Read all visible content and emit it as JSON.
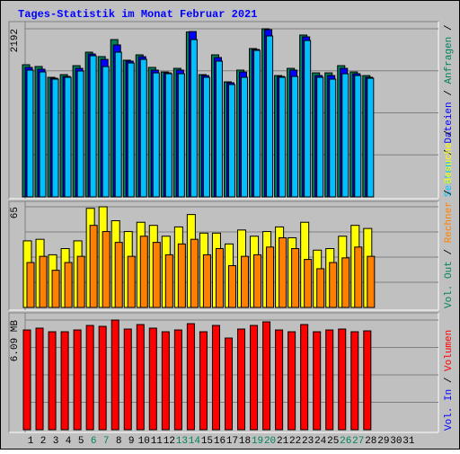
{
  "chart_data": [
    {
      "type": "bar",
      "title": "Tages-Statistik im Monat Februar 2021",
      "ylim": [
        0,
        2192
      ],
      "yticks": [
        2192
      ],
      "series": [
        {
          "name": "Anfragen",
          "color": "#00805c",
          "values": [
            1723,
            1700,
            1559,
            1594,
            1711,
            1887,
            1829,
            2051,
            1782,
            1852,
            1688,
            1629,
            1676,
            2150,
            1594,
            1852,
            1500,
            1653,
            1934,
            2192,
            1582,
            1676,
            2110,
            1617,
            1617,
            1711,
            1629,
            1582,
            null,
            null,
            null
          ]
        },
        {
          "name": "Dateien",
          "color": "#0000ff",
          "values": [
            1688,
            1664,
            1547,
            1570,
            1676,
            1863,
            1793,
            1981,
            1770,
            1828,
            1653,
            1617,
            1653,
            2156,
            1582,
            1817,
            1488,
            1629,
            1922,
            2180,
            1570,
            1653,
            2086,
            1582,
            1582,
            1676,
            1606,
            1559,
            null,
            null,
            null
          ]
        },
        {
          "name": "Seiten",
          "color": "#00c0ff",
          "values": [
            1653,
            1629,
            1535,
            1559,
            1641,
            1840,
            1699,
            1887,
            1746,
            1793,
            1617,
            1606,
            1606,
            2051,
            1559,
            1770,
            1465,
            1559,
            1910,
            2098,
            1559,
            1570,
            2039,
            1559,
            1535,
            1606,
            1582,
            1547,
            null,
            null,
            null
          ]
        }
      ]
    },
    {
      "type": "bar",
      "ylim": [
        0,
        65
      ],
      "yticks": [
        65
      ],
      "legend_extra": [
        {
          "name": "Vol. Out",
          "color": "#00805c"
        }
      ],
      "series": [
        {
          "name": "Besuche",
          "color": "#ffff00",
          "values": [
            43,
            44,
            34,
            38,
            43,
            64,
            65,
            56,
            49,
            55,
            53,
            46,
            52,
            60,
            48,
            48,
            41,
            50,
            46,
            49,
            52,
            45,
            55,
            37,
            38,
            46,
            53,
            51,
            null,
            null,
            null
          ]
        },
        {
          "name": "Rechner",
          "color": "#ff8000",
          "values": [
            29,
            33,
            24,
            29,
            33,
            53,
            49,
            42,
            33,
            46,
            42,
            34,
            41,
            44,
            34,
            38,
            27,
            33,
            34,
            39,
            45,
            38,
            31,
            25,
            29,
            32,
            39,
            33,
            null,
            null,
            null
          ]
        }
      ]
    },
    {
      "type": "bar",
      "ylim": [
        0,
        6.09
      ],
      "yticks": [
        {
          "value": 6.09,
          "label": "6.09 MB"
        }
      ],
      "legend_extra": [
        {
          "name": "Vol. In",
          "color": "#0000ff"
        }
      ],
      "categories": [
        "1",
        "2",
        "3",
        "4",
        "5",
        "6",
        "7",
        "8",
        "9",
        "10",
        "11",
        "12",
        "13",
        "14",
        "15",
        "16",
        "17",
        "18",
        "19",
        "20",
        "21",
        "22",
        "23",
        "24",
        "25",
        "26",
        "27",
        "28",
        "29",
        "30",
        "31"
      ],
      "category_colors": [
        "#000",
        "#000",
        "#000",
        "#000",
        "#000",
        "#00805c",
        "#00805c",
        "#000",
        "#000",
        "#000",
        "#000",
        "#000",
        "#00805c",
        "#00805c",
        "#000",
        "#000",
        "#000",
        "#000",
        "#00805c",
        "#00805c",
        "#000",
        "#000",
        "#000",
        "#000",
        "#000",
        "#00805c",
        "#00805c",
        "#000",
        "#000",
        "#000",
        "#000"
      ],
      "series": [
        {
          "name": "Volumen",
          "color": "#ff0000",
          "values": [
            5.54,
            5.64,
            5.44,
            5.44,
            5.54,
            5.79,
            5.74,
            6.09,
            5.59,
            5.84,
            5.64,
            5.44,
            5.54,
            5.89,
            5.44,
            5.79,
            5.09,
            5.59,
            5.79,
            5.99,
            5.54,
            5.44,
            5.84,
            5.44,
            5.54,
            5.59,
            5.44,
            5.49,
            null,
            null,
            null
          ]
        }
      ]
    }
  ]
}
